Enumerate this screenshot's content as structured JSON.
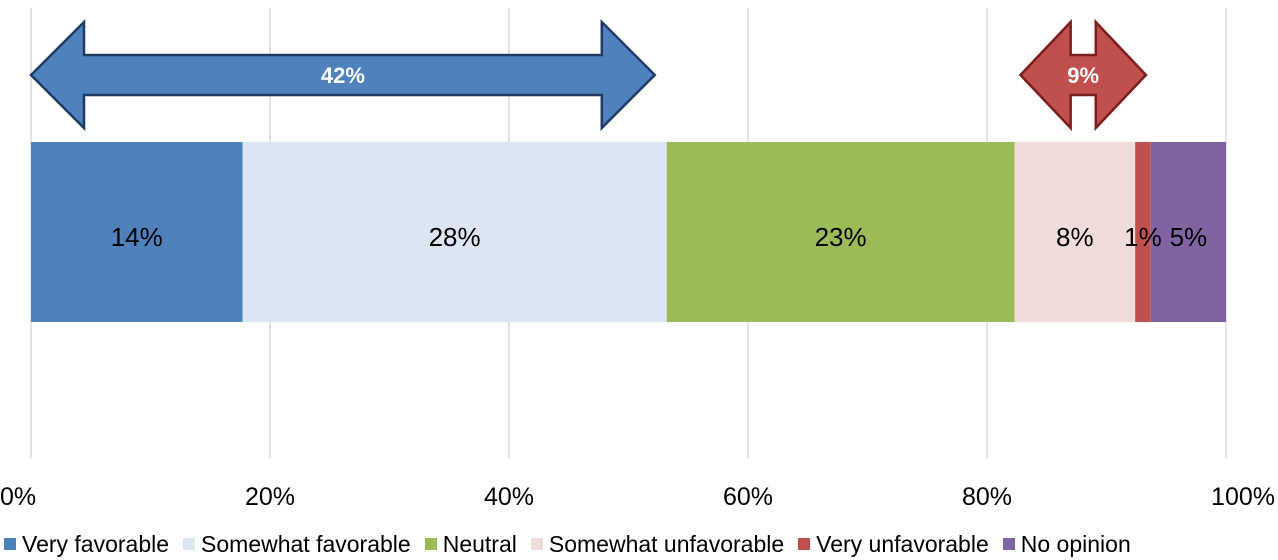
{
  "chart_data": {
    "type": "bar",
    "orientation": "horizontal",
    "stacked": true,
    "x_ticks": [
      "0%",
      "20%",
      "40%",
      "60%",
      "80%",
      "100%"
    ],
    "xlim": [
      0,
      100
    ],
    "grid": true,
    "legend_position": "bottom",
    "series": [
      {
        "name": "Very favorable",
        "value": 17.7,
        "label": "14%",
        "color": "#4f81bd"
      },
      {
        "name": "Somewhat favorable",
        "value": 35.5,
        "label": "28%",
        "color": "#dce6f2"
      },
      {
        "name": "Neutral",
        "value": 29.1,
        "label": "23%",
        "color": "#9bbb59"
      },
      {
        "name": "Somewhat unfavorable",
        "value": 10.1,
        "label": "8%",
        "color": "#f2dcdb"
      },
      {
        "name": "Very unfavorable",
        "value": 1.3,
        "label": "1%",
        "color": "#c0504d"
      },
      {
        "name": "No opinion",
        "value": 6.3,
        "label": "5%",
        "color": "#8064a2"
      }
    ],
    "annotations": [
      {
        "label": "42%",
        "from": 0,
        "to": 52.2,
        "color": "#4f81bd",
        "stroke": "#1f3b63"
      },
      {
        "label": "9%",
        "from": 82.8,
        "to": 93.3,
        "color": "#c0504d",
        "stroke": "#7a1f1d"
      }
    ]
  }
}
